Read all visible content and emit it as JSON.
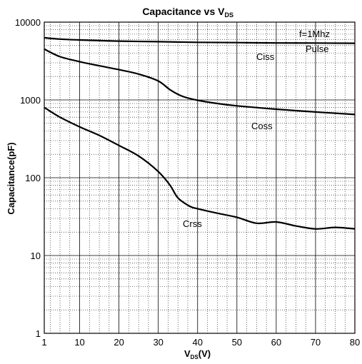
{
  "chart_data": {
    "type": "line",
    "title": {
      "main": "Capacitance vs V",
      "sub": "DS"
    },
    "xlabel": {
      "main": "V",
      "sub": "DS",
      "suffix": "(V)"
    },
    "ylabel": "Capacitance(pF)",
    "xlim": [
      1,
      80
    ],
    "ylim": [
      1,
      10000
    ],
    "yscale": "log",
    "grid": true,
    "x_ticks": [
      1,
      10,
      20,
      30,
      40,
      50,
      60,
      70,
      80
    ],
    "y_ticks": [
      {
        "value": 1,
        "label": "1"
      },
      {
        "value": 10,
        "label": "10"
      },
      {
        "value": 100,
        "label": "100"
      },
      {
        "value": 1000,
        "label": "1000"
      },
      {
        "value": 10000,
        "label": "10000"
      }
    ],
    "series": [
      {
        "name": "Ciss",
        "x": [
          1,
          5,
          10,
          20,
          30,
          40,
          50,
          60,
          70,
          80
        ],
        "values": [
          6300,
          6050,
          5900,
          5700,
          5600,
          5500,
          5450,
          5400,
          5380,
          5350
        ]
      },
      {
        "name": "Coss",
        "x": [
          1,
          5,
          10,
          15,
          20,
          25,
          30,
          33,
          36,
          40,
          45,
          50,
          60,
          70,
          80
        ],
        "values": [
          4500,
          3600,
          3100,
          2750,
          2450,
          2150,
          1750,
          1350,
          1120,
          990,
          900,
          840,
          760,
          700,
          650
        ]
      },
      {
        "name": "Crss",
        "x": [
          1,
          5,
          10,
          15,
          20,
          25,
          30,
          33,
          35,
          38,
          40,
          45,
          50,
          55,
          60,
          65,
          70,
          75,
          80
        ],
        "values": [
          800,
          600,
          450,
          350,
          260,
          190,
          120,
          80,
          55,
          43,
          40,
          35,
          31,
          26,
          27,
          24,
          22,
          23,
          22
        ]
      }
    ],
    "annotations": {
      "ciss": "Ciss",
      "coss": "Coss",
      "crss": "Crss",
      "freq": "f=1Mhz",
      "pulse": "Pulse"
    }
  }
}
